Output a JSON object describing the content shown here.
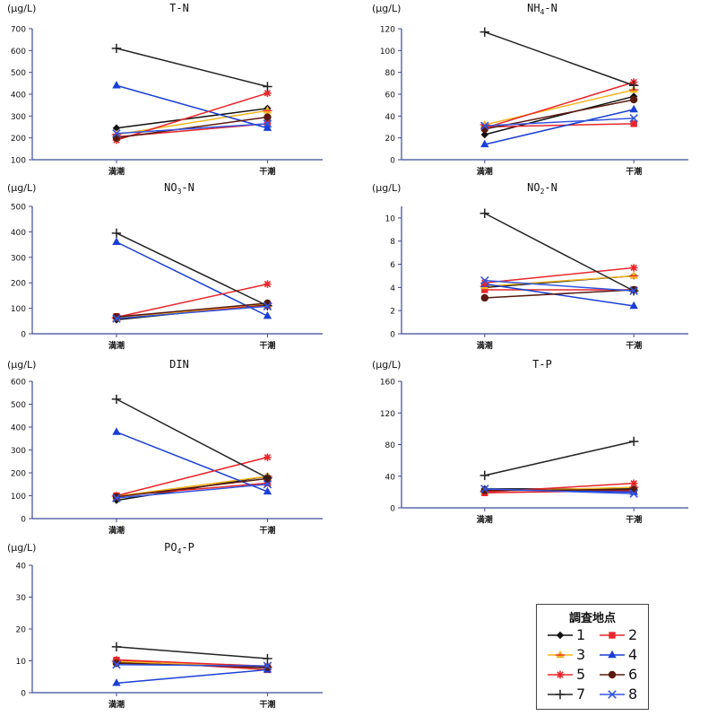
{
  "unit": "(μg/L)",
  "series_names": [
    "1",
    "2",
    "3",
    "4",
    "5",
    "6",
    "7",
    "8"
  ],
  "series_colors": [
    "#111111",
    "#e8262b",
    "#f3b51f",
    "#1a3fd6",
    "#e8262b",
    "#5a1a10",
    "#222222",
    "#3355e0"
  ],
  "series_markers": [
    "diamond",
    "square",
    "triangle-star",
    "triangle",
    "asterisk",
    "circle",
    "plus",
    "x"
  ],
  "legend": {
    "title": "調査地点"
  },
  "chart_data": [
    {
      "type": "line",
      "title": "T-N",
      "categories": [
        "満潮",
        "干潮"
      ],
      "ylim": [
        100,
        700
      ],
      "yticks": [
        "100",
        "200",
        "300",
        "400",
        "500",
        "600",
        "700"
      ],
      "series": [
        {
          "name": "1",
          "values": [
            245,
            335
          ]
        },
        {
          "name": "2",
          "values": [
            205,
            265
          ]
        },
        {
          "name": "3",
          "values": [
            215,
            325
          ]
        },
        {
          "name": "4",
          "values": [
            440,
            245
          ]
        },
        {
          "name": "5",
          "values": [
            190,
            405
          ]
        },
        {
          "name": "6",
          "values": [
            200,
            295
          ]
        },
        {
          "name": "7",
          "values": [
            610,
            435
          ]
        },
        {
          "name": "8",
          "values": [
            220,
            265
          ]
        }
      ]
    },
    {
      "type": "line",
      "title": "NH4-N",
      "categories": [
        "満潮",
        "干潮"
      ],
      "ylim": [
        0,
        120
      ],
      "yticks": [
        "0",
        "20",
        "40",
        "60",
        "80",
        "100",
        "120"
      ],
      "series": [
        {
          "name": "1",
          "values": [
            23,
            58
          ]
        },
        {
          "name": "2",
          "values": [
            30,
            33
          ]
        },
        {
          "name": "3",
          "values": [
            32,
            64
          ]
        },
        {
          "name": "4",
          "values": [
            14,
            46
          ]
        },
        {
          "name": "5",
          "values": [
            29,
            71
          ]
        },
        {
          "name": "6",
          "values": [
            28,
            55
          ]
        },
        {
          "name": "7",
          "values": [
            117,
            68
          ]
        },
        {
          "name": "8",
          "values": [
            31,
            38
          ]
        }
      ]
    },
    {
      "type": "line",
      "title": "NO3-N",
      "categories": [
        "満潮",
        "干潮"
      ],
      "ylim": [
        0,
        500
      ],
      "yticks": [
        "0",
        "100",
        "200",
        "300",
        "400",
        "500"
      ],
      "series": [
        {
          "name": "1",
          "values": [
            55,
            115
          ]
        },
        {
          "name": "2",
          "values": [
            68,
            110
          ]
        },
        {
          "name": "3",
          "values": [
            62,
            118
          ]
        },
        {
          "name": "4",
          "values": [
            360,
            70
          ]
        },
        {
          "name": "5",
          "values": [
            65,
            195
          ]
        },
        {
          "name": "6",
          "values": [
            66,
            120
          ]
        },
        {
          "name": "7",
          "values": [
            395,
            110
          ]
        },
        {
          "name": "8",
          "values": [
            60,
            108
          ]
        }
      ]
    },
    {
      "type": "line",
      "title": "NO2-N",
      "categories": [
        "満潮",
        "干潮"
      ],
      "ylim": [
        0,
        11
      ],
      "yticks": [
        "0",
        "2",
        "4",
        "6",
        "8",
        "10"
      ],
      "series": [
        {
          "name": "1",
          "values": [
            4.0,
            5.0
          ]
        },
        {
          "name": "2",
          "values": [
            3.8,
            3.8
          ]
        },
        {
          "name": "3",
          "values": [
            4.1,
            5.0
          ]
        },
        {
          "name": "4",
          "values": [
            4.3,
            2.4
          ]
        },
        {
          "name": "5",
          "values": [
            4.4,
            5.7
          ]
        },
        {
          "name": "6",
          "values": [
            3.1,
            3.8
          ]
        },
        {
          "name": "7",
          "values": [
            10.4,
            3.7
          ]
        },
        {
          "name": "8",
          "values": [
            4.6,
            3.7
          ]
        }
      ]
    },
    {
      "type": "line",
      "title": "DIN",
      "categories": [
        "満潮",
        "干潮"
      ],
      "ylim": [
        0,
        600
      ],
      "yticks": [
        "0",
        "100",
        "200",
        "300",
        "400",
        "500",
        "600"
      ],
      "series": [
        {
          "name": "1",
          "values": [
            80,
            185
          ]
        },
        {
          "name": "2",
          "values": [
            100,
            155
          ]
        },
        {
          "name": "3",
          "values": [
            98,
            185
          ]
        },
        {
          "name": "4",
          "values": [
            378,
            118
          ]
        },
        {
          "name": "5",
          "values": [
            100,
            268
          ]
        },
        {
          "name": "6",
          "values": [
            95,
            175
          ]
        },
        {
          "name": "7",
          "values": [
            522,
            178
          ]
        },
        {
          "name": "8",
          "values": [
            90,
            150
          ]
        }
      ]
    },
    {
      "type": "line",
      "title": "T-P",
      "categories": [
        "満潮",
        "干潮"
      ],
      "ylim": [
        0,
        160
      ],
      "yticks": [
        "0",
        "40",
        "80",
        "120",
        "160"
      ],
      "series": [
        {
          "name": "1",
          "values": [
            24,
            24
          ]
        },
        {
          "name": "2",
          "values": [
            19,
            22
          ]
        },
        {
          "name": "3",
          "values": [
            21,
            26
          ]
        },
        {
          "name": "4",
          "values": [
            23,
            20
          ]
        },
        {
          "name": "5",
          "values": [
            20,
            31
          ]
        },
        {
          "name": "6",
          "values": [
            22,
            23
          ]
        },
        {
          "name": "7",
          "values": [
            41,
            84
          ]
        },
        {
          "name": "8",
          "values": [
            24,
            18
          ]
        }
      ]
    },
    {
      "type": "line",
      "title": "PO4-P",
      "categories": [
        "満潮",
        "干潮"
      ],
      "ylim": [
        0,
        40
      ],
      "yticks": [
        "0",
        "10",
        "20",
        "30",
        "40"
      ],
      "series": [
        {
          "name": "1",
          "values": [
            9.5,
            7.8
          ]
        },
        {
          "name": "2",
          "values": [
            10.2,
            7.2
          ]
        },
        {
          "name": "3",
          "values": [
            9.8,
            8.0
          ]
        },
        {
          "name": "4",
          "values": [
            3.0,
            7.2
          ]
        },
        {
          "name": "5",
          "values": [
            10.3,
            8.3
          ]
        },
        {
          "name": "6",
          "values": [
            9.2,
            8.0
          ]
        },
        {
          "name": "7",
          "values": [
            14.4,
            10.7
          ]
        },
        {
          "name": "8",
          "values": [
            8.8,
            8.4
          ]
        }
      ]
    }
  ]
}
